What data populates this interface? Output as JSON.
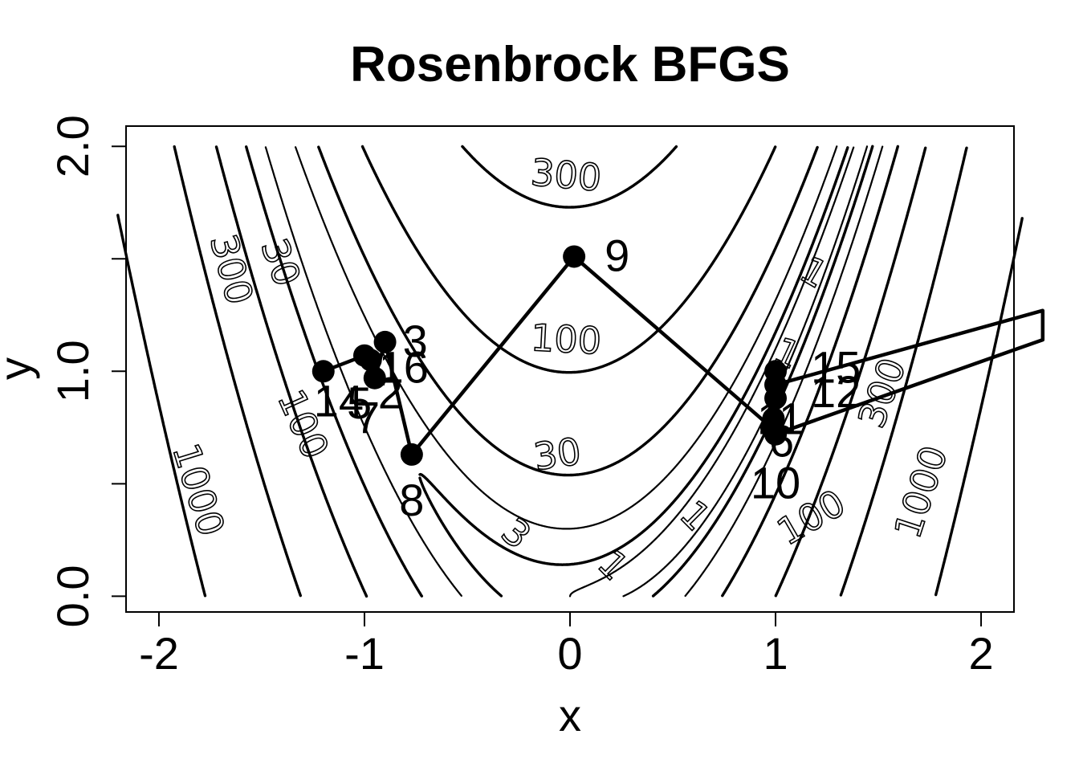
{
  "chart_data": {
    "type": "line",
    "title": "Rosenbrock BFGS",
    "xlabel": "x",
    "ylabel": "y",
    "xlim": [
      -2.16,
      2.16
    ],
    "ylim": [
      -0.07,
      2.09
    ],
    "x_ticks": [
      -2,
      -1,
      0,
      1,
      2
    ],
    "x_tick_labels": [
      "-2",
      "-1",
      "0",
      "1",
      "2"
    ],
    "y_ticks": [
      0.0,
      0.5,
      1.0,
      1.5,
      2.0
    ],
    "y_tick_labels": [
      "0.0",
      "",
      "1.0",
      "",
      "2.0"
    ],
    "grid": false,
    "contour_levels": [
      3,
      30,
      100,
      300,
      1000,
      1,
      10
    ],
    "contour_labels": [
      "300",
      "30",
      "300",
      "100",
      "1000",
      "100",
      "30",
      "3",
      "1",
      "1",
      "100",
      "1000",
      "300",
      "1",
      "1"
    ],
    "series": [
      {
        "x": [
          -1.2,
          -1.0,
          -0.97,
          -0.95,
          -0.9,
          -0.77,
          0.02,
          0.98,
          1.0,
          1.0,
          0.99,
          1.0,
          1.0,
          2.3,
          2.3,
          1.0
        ],
        "y": [
          1.0,
          1.07,
          1.05,
          0.97,
          1.13,
          0.63,
          1.51,
          0.75,
          0.72,
          0.88,
          0.79,
          1.0,
          0.94,
          1.27,
          1.14,
          0.72
        ]
      }
    ],
    "annotations": [
      {
        "text": "9",
        "x": 0.02,
        "y": 1.51
      },
      {
        "text": "8",
        "x": -0.77,
        "y": 0.63
      },
      {
        "text": "3",
        "x": -0.9,
        "y": 1.13
      },
      {
        "text": "16",
        "x": -0.97,
        "y": 1.05
      },
      {
        "text": "2",
        "x": -0.95,
        "y": 0.97
      },
      {
        "text": "14",
        "x": -1.2,
        "y": 1.0
      },
      {
        "text": "5",
        "x": -1.0,
        "y": 0.94
      },
      {
        "text": "7",
        "x": -1.0,
        "y": 0.94
      },
      {
        "text": "10",
        "x": 1.0,
        "y": 0.72
      },
      {
        "text": "15",
        "x": 1.0,
        "y": 1.0
      },
      {
        "text": "12",
        "x": 1.0,
        "y": 0.94
      },
      {
        "text": "11",
        "x": 0.98,
        "y": 0.75
      },
      {
        "text": "4",
        "x": 0.99,
        "y": 0.79
      },
      {
        "text": "6",
        "x": 1.0,
        "y": 0.72
      }
    ]
  }
}
